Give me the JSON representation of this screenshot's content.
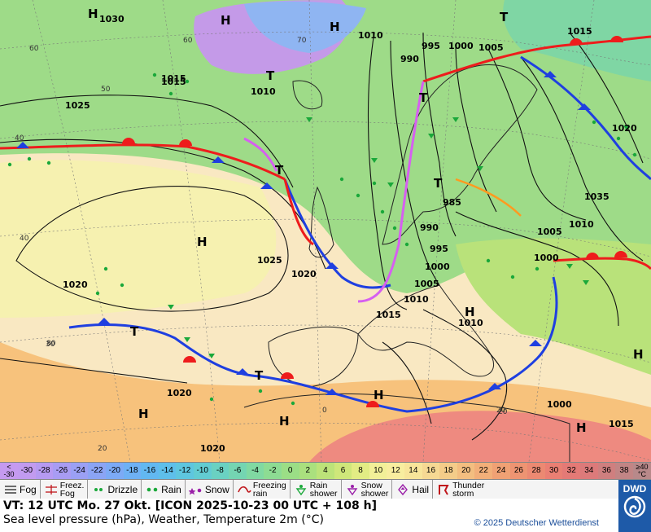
{
  "map": {
    "highs": [
      "H",
      "H",
      "H",
      "H",
      "H",
      "H",
      "H",
      "H",
      "H",
      "H"
    ],
    "lows": [
      "T",
      "T",
      "T",
      "T",
      "T",
      "T",
      "T"
    ],
    "isobars": [
      "1030",
      "1010",
      "995",
      "1000",
      "1005",
      "1015",
      "990",
      "1010",
      "1025",
      "1015",
      "1020",
      "1025",
      "1020",
      "1020",
      "1035",
      "1010",
      "1005",
      "1000",
      "995",
      "1000",
      "1005",
      "1010",
      "1015",
      "1010",
      "1000",
      "1015",
      "1015",
      "1020",
      "1020",
      "985",
      "990"
    ],
    "lat_labels": [
      "60",
      "50",
      "40",
      "30",
      "20",
      "40",
      "20",
      "60",
      "70",
      "80",
      "0",
      "20"
    ],
    "colors": {
      "sea_bg": "#f9e8c2",
      "green": "#9edb88",
      "yellow": "#f6f1b0",
      "orange": "#f7c27c",
      "red": "#ee8a80",
      "purple": "#c49ae8",
      "cold_front": "#1f3fe0",
      "warm_front": "#ee1c1c",
      "occlusion": "#d65ff0",
      "trough": "#ff9a20"
    }
  },
  "scale": {
    "first": "<\n-30",
    "values": [
      "-30",
      "-28",
      "-26",
      "-24",
      "-22",
      "-20",
      "-18",
      "-16",
      "-14",
      "-12",
      "-10",
      "-8",
      "-6",
      "-4",
      "-2",
      "0",
      "2",
      "4",
      "6",
      "8",
      "10",
      "12",
      "14",
      "16",
      "18",
      "20",
      "22",
      "24",
      "26",
      "28",
      "30",
      "32",
      "34",
      "36",
      "38"
    ],
    "colors": [
      "#c29bf0",
      "#b69af2",
      "#a89cf3",
      "#9ba0f4",
      "#8ba4f5",
      "#7caaf6",
      "#6eb1f5",
      "#62b8f1",
      "#5ebfea",
      "#5ec6df",
      "#62ccd2",
      "#6ad1c2",
      "#74d5b2",
      "#80d9a2",
      "#8ddc93",
      "#9bde86",
      "#aae07e",
      "#bce379",
      "#cfe77a",
      "#e2ec84",
      "#f2f098",
      "#f8ee9f",
      "#f8e59a",
      "#f6d993",
      "#f4cc89",
      "#f3be80",
      "#f2af79",
      "#f0a174",
      "#ee9472",
      "#ec8972",
      "#ea7f73",
      "#e47a76",
      "#dc7a7a",
      "#cf7f7f",
      "#c28585"
    ],
    "last": "≥40\n°C"
  },
  "legend": [
    {
      "icon": "fog-icon",
      "label": "Fog"
    },
    {
      "icon": "freezing-fog-icon",
      "label": "Freez.\nFog"
    },
    {
      "icon": "drizzle-icon",
      "label": "Drizzle"
    },
    {
      "icon": "rain-icon",
      "label": "Rain"
    },
    {
      "icon": "snow-icon",
      "label": "Snow"
    },
    {
      "icon": "freezing-rain-icon",
      "label": "Freezing\nrain"
    },
    {
      "icon": "rain-shower-icon",
      "label": "Rain\nshower"
    },
    {
      "icon": "snow-shower-icon",
      "label": "Snow\nshower"
    },
    {
      "icon": "hail-icon",
      "label": "Hail"
    },
    {
      "icon": "thunderstorm-icon",
      "label": "Thunder\nstorm"
    }
  ],
  "footer": {
    "line1": "VT: 12 UTC Mo.  27 Okt. [ICON 2025-10-23  00 UTC + 108 h]",
    "line2": "Sea level pressure (hPa), Weather, Temperature 2m (°C)",
    "copyright": "© 2025 Deutscher Wetterdienst",
    "logo": "DWD"
  }
}
